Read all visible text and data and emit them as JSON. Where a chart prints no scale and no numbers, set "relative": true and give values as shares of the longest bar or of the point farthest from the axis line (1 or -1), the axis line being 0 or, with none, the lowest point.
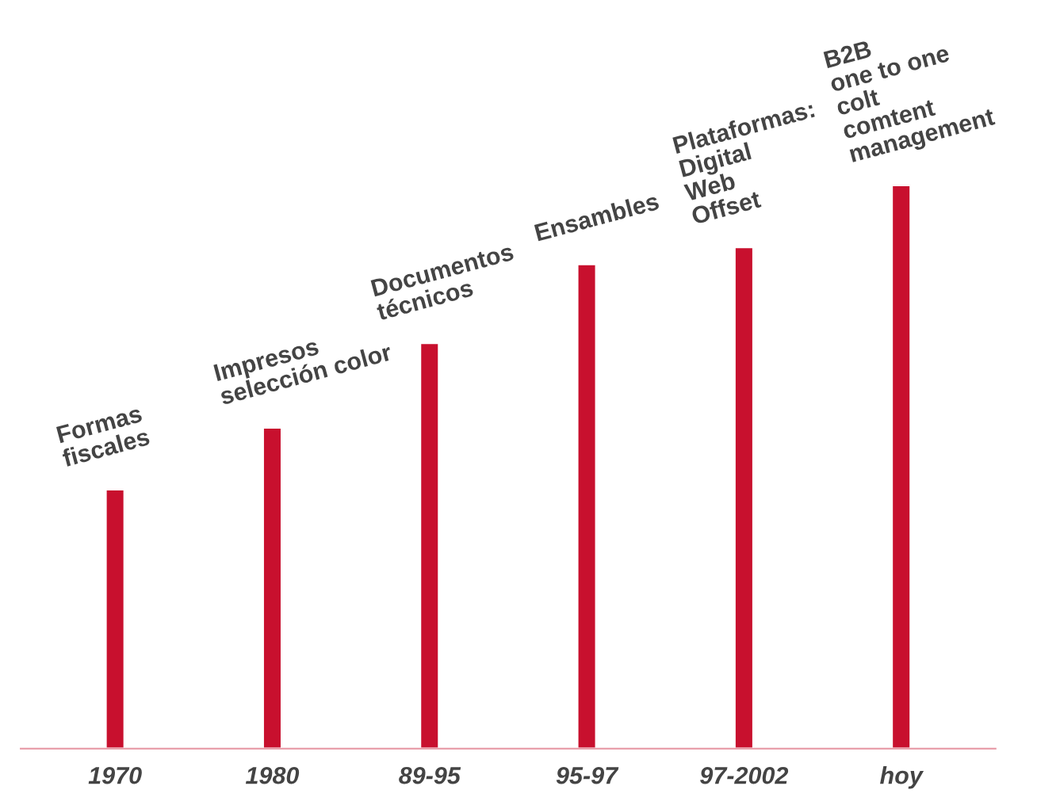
{
  "chart_data": {
    "type": "bar",
    "relative": true,
    "categories": [
      "1970",
      "1980",
      "89-95",
      "95-97",
      "97-2002",
      "hoy"
    ],
    "values": [
      0.46,
      0.57,
      0.72,
      0.86,
      0.89,
      1
    ],
    "color": "#c8102e",
    "grid": false,
    "legend": false,
    "annotations": [
      {
        "text": "Formas\nfiscales",
        "x": "1970",
        "y": 0.46
      },
      {
        "text": "Impresos\nselección color",
        "x": "1980",
        "y": 0.57
      },
      {
        "text": "Documentos\ntécnicos",
        "x": "89-95",
        "y": 0.72
      },
      {
        "text": "Ensambles",
        "x": "95-97",
        "y": 0.86
      },
      {
        "text": "Plataformas:\nDigital\nWeb\nOffset",
        "x": "97-2002",
        "y": 0.89
      },
      {
        "text": "B2B\none to one\ncolt\ncomtent\nmanagement",
        "x": "hoy",
        "y": 1
      }
    ]
  }
}
